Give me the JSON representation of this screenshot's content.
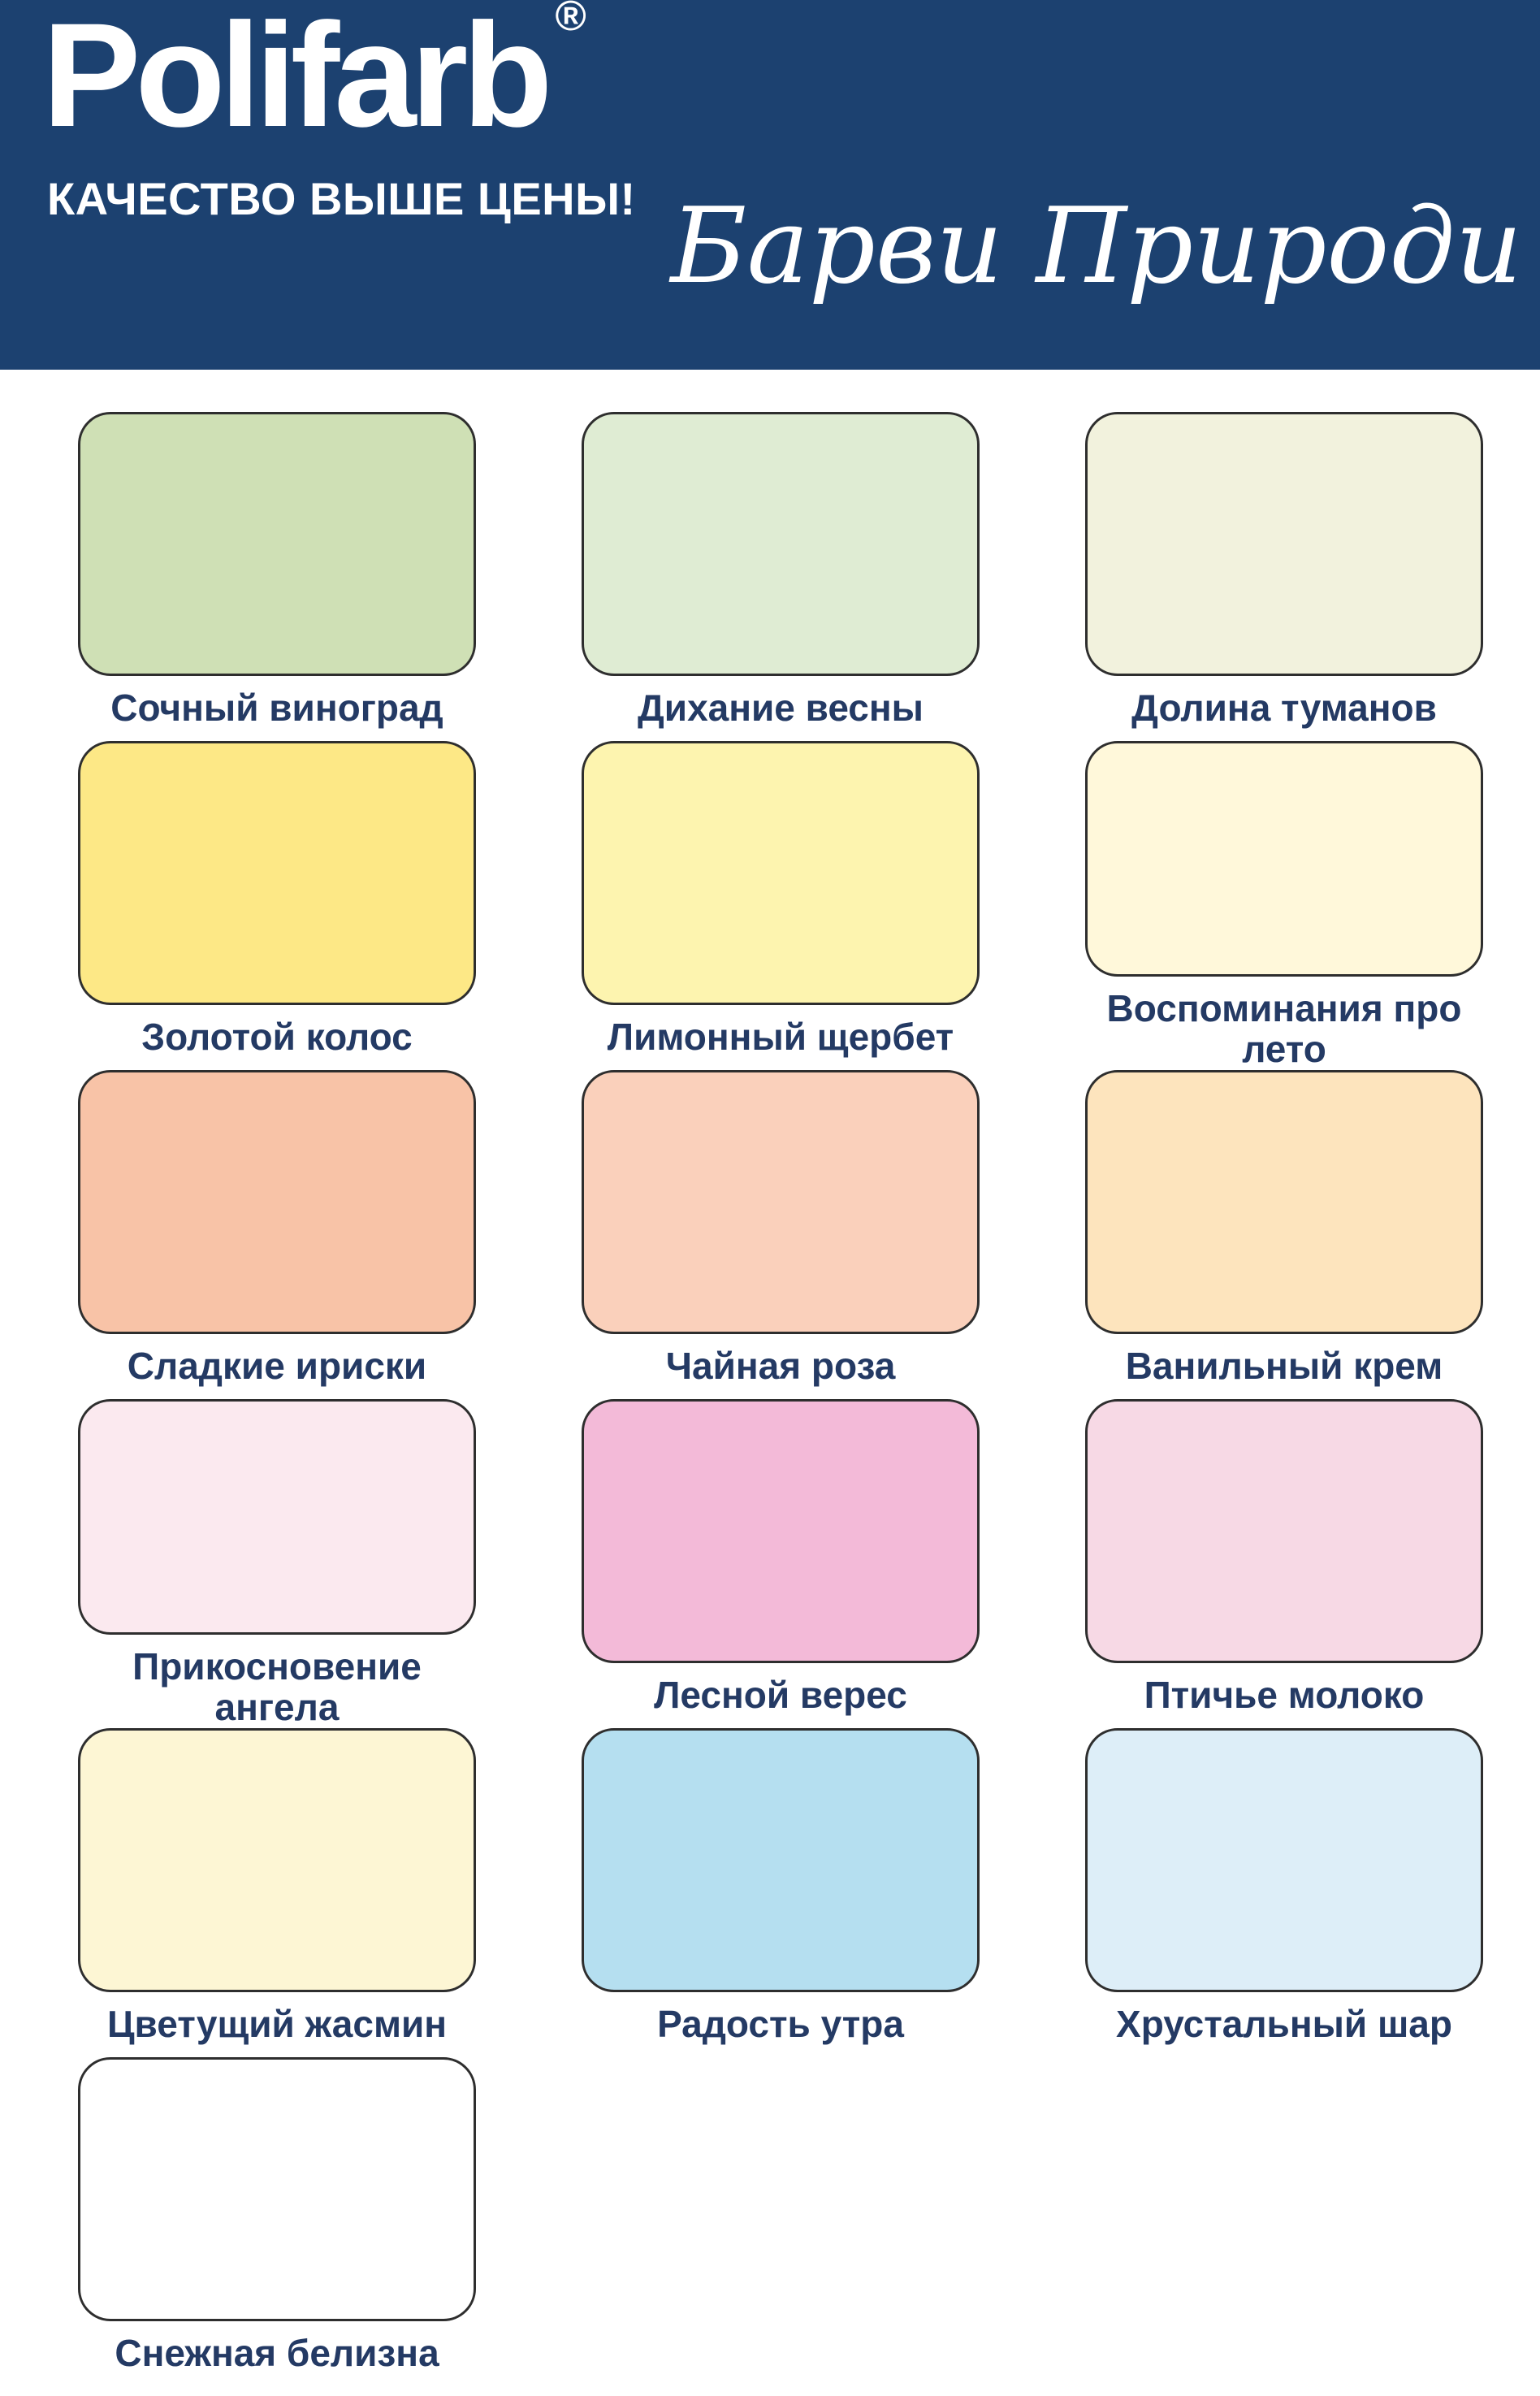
{
  "header": {
    "logo": "Polifarb",
    "registered": "®",
    "tagline": "КАЧЕСТВО ВЫШЕ ЦЕНЫ!",
    "script_title": "Барви Природи",
    "bg_color": "#1c4170",
    "text_color": "#ffffff"
  },
  "palette": {
    "label_color": "#243a64",
    "swatch_border_color": "#2e2e2e",
    "swatches": [
      {
        "name": "Сочный виноград",
        "color": "#cfe0b5"
      },
      {
        "name": "Дихание весны",
        "color": "#dfecd3"
      },
      {
        "name": "Долина туманов",
        "color": "#f2f2dd"
      },
      {
        "name": "Золотой колос",
        "color": "#fde886"
      },
      {
        "name": "Лимонный щербет",
        "color": "#fdf4af"
      },
      {
        "name": "Воспоминания про лето",
        "color": "#fff8da"
      },
      {
        "name": "Сладкие ириски",
        "color": "#f8c3a7"
      },
      {
        "name": "Чайная роза",
        "color": "#fad0bb"
      },
      {
        "name": "Ванильный крем",
        "color": "#fde4bd"
      },
      {
        "name": "Прикосновение ангела",
        "color": "#fbe9ef"
      },
      {
        "name": "Лесной верес",
        "color": "#f3bad8"
      },
      {
        "name": "Птичье молоко",
        "color": "#f7d9e5"
      },
      {
        "name": "Цветущий жасмин",
        "color": "#fdf6d4"
      },
      {
        "name": "Радость утра",
        "color": "#b5dff0"
      },
      {
        "name": "Хрустальный шар",
        "color": "#ddeef8"
      },
      {
        "name": "Снежная белизна",
        "color": "#ffffff"
      }
    ]
  }
}
